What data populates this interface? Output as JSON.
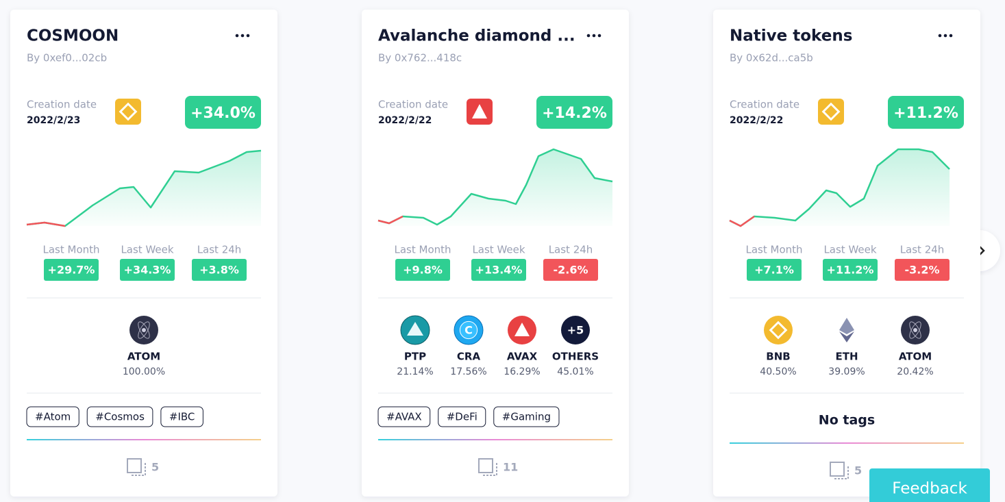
{
  "cards": [
    {
      "title": "COSMOON",
      "author": "By 0xef0...02cb",
      "creation_label": "Creation date",
      "date": "2022/2/23",
      "chain": "bnb",
      "change": "+34.0%",
      "periods": [
        {
          "label": "Last Month",
          "value": "+29.7%",
          "trend": "up"
        },
        {
          "label": "Last Week",
          "value": "+34.3%",
          "trend": "up"
        },
        {
          "label": "Last 24h",
          "value": "+3.8%",
          "trend": "up"
        }
      ],
      "tokens": [
        {
          "symbol": "ATOM",
          "share": "100.00%",
          "icon": "atom"
        }
      ],
      "tags": [
        "#Atom",
        "#Cosmos",
        "#IBC"
      ],
      "count": "5"
    },
    {
      "title": "Avalanche diamond ...",
      "author": "By 0x762...418c",
      "creation_label": "Creation date",
      "date": "2022/2/22",
      "chain": "avax",
      "change": "+14.2%",
      "periods": [
        {
          "label": "Last Month",
          "value": "+9.8%",
          "trend": "up"
        },
        {
          "label": "Last Week",
          "value": "+13.4%",
          "trend": "up"
        },
        {
          "label": "Last 24h",
          "value": "-2.6%",
          "trend": "down"
        }
      ],
      "tokens": [
        {
          "symbol": "PTP",
          "share": "21.14%",
          "icon": "ptp"
        },
        {
          "symbol": "CRA",
          "share": "17.56%",
          "icon": "cra"
        },
        {
          "symbol": "AVAX",
          "share": "16.29%",
          "icon": "avax"
        },
        {
          "symbol": "OTHERS",
          "share": "45.01%",
          "icon": "others",
          "badge": "+5"
        }
      ],
      "tags": [
        "#AVAX",
        "#DeFi",
        "#Gaming"
      ],
      "count": "11"
    },
    {
      "title": "Native tokens",
      "author": "By 0x62d...ca5b",
      "creation_label": "Creation date",
      "date": "2022/2/22",
      "chain": "bnb",
      "change": "+11.2%",
      "periods": [
        {
          "label": "Last Month",
          "value": "+7.1%",
          "trend": "up"
        },
        {
          "label": "Last Week",
          "value": "+11.2%",
          "trend": "up"
        },
        {
          "label": "Last 24h",
          "value": "-3.2%",
          "trend": "down"
        }
      ],
      "tokens": [
        {
          "symbol": "BNB",
          "share": "40.50%",
          "icon": "bnb"
        },
        {
          "symbol": "ETH",
          "share": "39.09%",
          "icon": "eth"
        },
        {
          "symbol": "ATOM",
          "share": "20.42%",
          "icon": "atom"
        }
      ],
      "tags": [],
      "no_tags": "No tags",
      "count": "5"
    }
  ],
  "feedback": "Feedback"
}
